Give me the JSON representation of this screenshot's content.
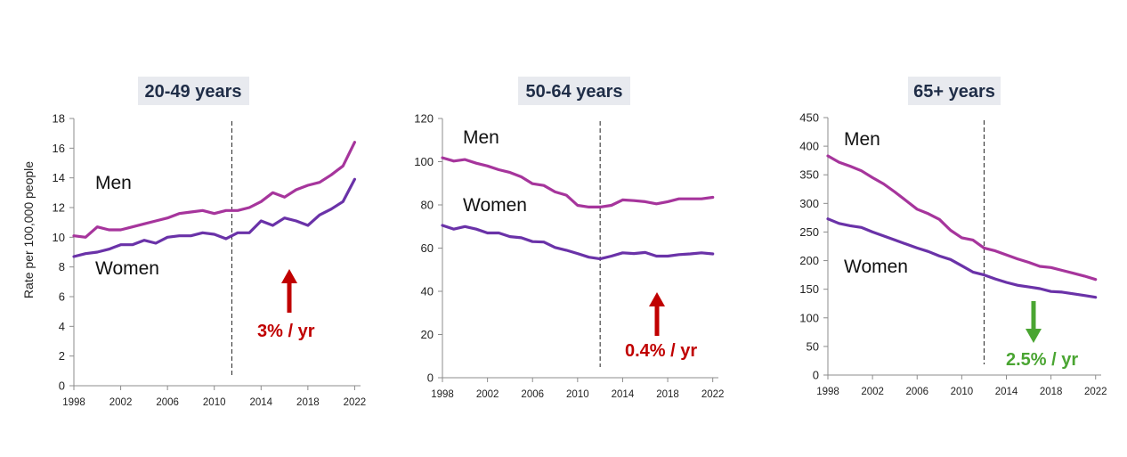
{
  "chart_data": [
    {
      "type": "line",
      "title": "20-49 years",
      "ylabel": "Rate per 100,000 people",
      "xlabel": "",
      "ylim": [
        0,
        18
      ],
      "yticks": [
        0,
        2,
        4,
        6,
        8,
        10,
        12,
        14,
        16,
        18
      ],
      "xlim": [
        1998,
        2022.5
      ],
      "xticks": [
        1998,
        2002,
        2006,
        2010,
        2014,
        2018,
        2022
      ],
      "x": [
        1998,
        1999,
        2000,
        2001,
        2002,
        2003,
        2004,
        2005,
        2006,
        2007,
        2008,
        2009,
        2010,
        2011,
        2012,
        2013,
        2014,
        2015,
        2016,
        2017,
        2018,
        2019,
        2020,
        2021,
        2022
      ],
      "series": [
        {
          "name": "Men",
          "color": "#a6359c",
          "values": [
            10.1,
            10.0,
            10.7,
            10.5,
            10.5,
            10.7,
            10.9,
            11.1,
            11.3,
            11.6,
            11.7,
            11.8,
            11.6,
            11.8,
            11.8,
            12.0,
            12.4,
            13.0,
            12.7,
            13.2,
            13.5,
            13.7,
            14.2,
            14.8,
            16.4
          ]
        },
        {
          "name": "Women",
          "color": "#6a32a8",
          "values": [
            8.7,
            8.9,
            9.0,
            9.2,
            9.5,
            9.5,
            9.8,
            9.6,
            10.0,
            10.1,
            10.1,
            10.3,
            10.2,
            9.9,
            10.3,
            10.3,
            11.1,
            10.8,
            11.3,
            11.1,
            10.8,
            11.5,
            11.9,
            12.4,
            13.9
          ]
        }
      ],
      "series_labels": [
        "Men",
        "Women"
      ],
      "reference_line_x": 2011.5,
      "annotation": {
        "text": "3% / yr",
        "direction": "up",
        "color": "#c00000"
      }
    },
    {
      "type": "line",
      "title": "50-64 years",
      "ylabel": "",
      "xlabel": "",
      "ylim": [
        0,
        120
      ],
      "yticks": [
        0,
        20,
        40,
        60,
        80,
        100,
        120
      ],
      "xlim": [
        1998,
        2022.5
      ],
      "xticks": [
        1998,
        2002,
        2006,
        2010,
        2014,
        2018,
        2022
      ],
      "x": [
        1998,
        1999,
        2000,
        2001,
        2002,
        2003,
        2004,
        2005,
        2006,
        2007,
        2008,
        2009,
        2010,
        2011,
        2012,
        2013,
        2014,
        2015,
        2016,
        2017,
        2018,
        2019,
        2020,
        2021,
        2022
      ],
      "series": [
        {
          "name": "Men",
          "color": "#a6359c",
          "values": [
            101.8,
            100.3,
            101.0,
            99.3,
            98.0,
            96.3,
            95.0,
            93.0,
            89.8,
            89.0,
            86.0,
            84.5,
            79.8,
            79.0,
            79.0,
            79.8,
            82.3,
            82.0,
            81.5,
            80.5,
            81.5,
            82.8,
            82.8,
            82.8,
            83.5
          ]
        },
        {
          "name": "Women",
          "color": "#6a32a8",
          "values": [
            70.5,
            68.8,
            70.0,
            68.8,
            67.0,
            67.0,
            65.3,
            64.8,
            63.0,
            62.8,
            60.3,
            59.0,
            57.5,
            55.8,
            55.0,
            56.3,
            57.8,
            57.5,
            58.0,
            56.3,
            56.3,
            57.0,
            57.3,
            57.8,
            57.3
          ]
        }
      ],
      "series_labels": [
        "Men",
        "Women"
      ],
      "reference_line_x": 2012,
      "annotation": {
        "text": "0.4% / yr",
        "direction": "up",
        "color": "#c00000"
      }
    },
    {
      "type": "line",
      "title": "65+ years",
      "ylabel": "",
      "xlabel": "",
      "ylim": [
        0,
        450
      ],
      "yticks": [
        0,
        50,
        100,
        150,
        200,
        250,
        300,
        350,
        400,
        450
      ],
      "xlim": [
        1998,
        2022.5
      ],
      "xticks": [
        1998,
        2002,
        2006,
        2010,
        2014,
        2018,
        2022
      ],
      "x": [
        1998,
        1999,
        2000,
        2001,
        2002,
        2003,
        2004,
        2005,
        2006,
        2007,
        2008,
        2009,
        2010,
        2011,
        2012,
        2013,
        2014,
        2015,
        2016,
        2017,
        2018,
        2019,
        2020,
        2021,
        2022
      ],
      "series": [
        {
          "name": "Men",
          "color": "#a6359c",
          "values": [
            383,
            372,
            365,
            357,
            345,
            334,
            320,
            305,
            290,
            282,
            272,
            253,
            240,
            236,
            222,
            217,
            210,
            203,
            197,
            190,
            188,
            183,
            178,
            173,
            167
          ]
        },
        {
          "name": "Women",
          "color": "#6a32a8",
          "values": [
            273,
            265,
            261,
            258,
            250,
            243,
            236,
            229,
            222,
            216,
            208,
            202,
            191,
            180,
            175,
            168,
            162,
            157,
            154,
            151,
            146,
            145,
            142,
            139,
            136
          ]
        }
      ],
      "series_labels": [
        "Men",
        "Women"
      ],
      "reference_line_x": 2012,
      "annotation": {
        "text": "2.5% / yr",
        "direction": "down",
        "color": "#4aa532"
      }
    }
  ]
}
